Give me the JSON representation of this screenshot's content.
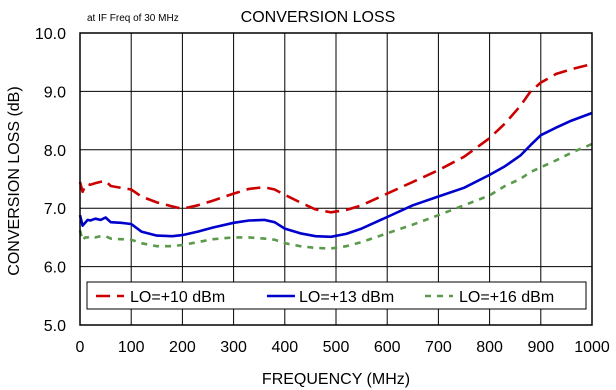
{
  "chart_data": {
    "type": "line",
    "title": "CONVERSION LOSS",
    "subtitle": "at IF Freq of 30 MHz",
    "xlabel": "FREQUENCY (MHz)",
    "ylabel": "CONVERSION LOSS (dB)",
    "xlim": [
      0,
      1000
    ],
    "ylim": [
      5.0,
      10.0
    ],
    "x_ticks": [
      0,
      100,
      200,
      300,
      400,
      500,
      600,
      700,
      800,
      900,
      1000
    ],
    "x_tick_labels": [
      "0",
      "100",
      "200",
      "300",
      "400",
      "500",
      "600",
      "700",
      "800",
      "900",
      "1000"
    ],
    "y_ticks": [
      5.0,
      6.0,
      7.0,
      8.0,
      9.0,
      10.0
    ],
    "y_tick_labels": [
      "5.0",
      "6.0",
      "7.0",
      "8.0",
      "9.0",
      "10.0"
    ],
    "grid": true,
    "legend_position": "bottom",
    "series": [
      {
        "name": "LO=+10 dBm",
        "color": "#cc0000",
        "dash": "dashed",
        "x": [
          0,
          5,
          10,
          15,
          20,
          30,
          40,
          50,
          60,
          80,
          100,
          120,
          150,
          180,
          200,
          230,
          260,
          300,
          330,
          360,
          380,
          400,
          430,
          460,
          490,
          520,
          550,
          600,
          650,
          700,
          750,
          800,
          830,
          860,
          880,
          900,
          930,
          960,
          1000
        ],
        "values": [
          7.45,
          7.28,
          7.38,
          7.42,
          7.4,
          7.43,
          7.45,
          7.47,
          7.38,
          7.35,
          7.32,
          7.2,
          7.1,
          7.03,
          6.99,
          7.05,
          7.13,
          7.25,
          7.33,
          7.36,
          7.32,
          7.23,
          7.1,
          6.98,
          6.93,
          6.97,
          7.05,
          7.25,
          7.45,
          7.65,
          7.88,
          8.2,
          8.45,
          8.75,
          9.0,
          9.15,
          9.3,
          9.38,
          9.47
        ]
      },
      {
        "name": "LO=+13 dBm",
        "color": "#0000cc",
        "dash": "solid",
        "x": [
          0,
          5,
          10,
          15,
          20,
          30,
          40,
          50,
          60,
          80,
          100,
          120,
          150,
          180,
          200,
          230,
          260,
          300,
          330,
          360,
          380,
          400,
          430,
          460,
          490,
          520,
          550,
          600,
          650,
          700,
          750,
          800,
          830,
          860,
          880,
          900,
          930,
          960,
          1000
        ],
        "values": [
          6.88,
          6.7,
          6.75,
          6.8,
          6.79,
          6.82,
          6.8,
          6.84,
          6.76,
          6.75,
          6.73,
          6.6,
          6.53,
          6.52,
          6.54,
          6.6,
          6.67,
          6.75,
          6.79,
          6.8,
          6.76,
          6.65,
          6.57,
          6.52,
          6.51,
          6.56,
          6.65,
          6.85,
          7.05,
          7.2,
          7.35,
          7.57,
          7.72,
          7.9,
          8.08,
          8.25,
          8.38,
          8.5,
          8.63
        ]
      },
      {
        "name": "LO=+16 dBm",
        "color": "#5a9a4a",
        "dash": "dashed",
        "x": [
          0,
          5,
          10,
          15,
          20,
          30,
          40,
          50,
          60,
          80,
          100,
          120,
          150,
          180,
          200,
          230,
          260,
          300,
          330,
          360,
          380,
          400,
          430,
          460,
          490,
          520,
          550,
          600,
          650,
          700,
          750,
          800,
          830,
          860,
          880,
          900,
          930,
          960,
          1000
        ],
        "values": [
          6.62,
          6.45,
          6.5,
          6.5,
          6.52,
          6.5,
          6.52,
          6.52,
          6.48,
          6.47,
          6.46,
          6.4,
          6.35,
          6.35,
          6.37,
          6.42,
          6.47,
          6.5,
          6.5,
          6.48,
          6.46,
          6.4,
          6.35,
          6.32,
          6.31,
          6.35,
          6.42,
          6.57,
          6.72,
          6.88,
          7.05,
          7.22,
          7.38,
          7.5,
          7.62,
          7.7,
          7.82,
          7.95,
          8.1
        ]
      }
    ]
  }
}
